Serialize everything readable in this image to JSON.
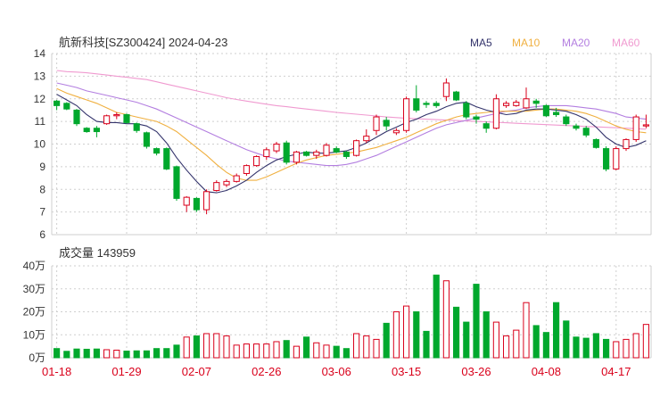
{
  "title": "航新科技[SZ300424] 2024-04-23",
  "colors": {
    "up": "#d9001b",
    "down": "#00a82d",
    "ma5": "#33336b",
    "ma10": "#f0b040",
    "ma20": "#b37ee0",
    "ma60": "#f09ad0",
    "grid": "#cfcfcf",
    "text": "#333333",
    "xtick": "#d9001b"
  },
  "legend": [
    {
      "label": "MA5",
      "color": "#33336b"
    },
    {
      "label": "MA10",
      "color": "#f0b040"
    },
    {
      "label": "MA20",
      "color": "#b37ee0"
    },
    {
      "label": "MA60",
      "color": "#f09ad0"
    }
  ],
  "volume_label": "成交量 143959",
  "chart_data": [
    {
      "type": "candlestick",
      "title": "航新科技[SZ300424] 2024-04-23",
      "ylim": [
        6,
        14
      ],
      "yticks": [
        6,
        7,
        8,
        9,
        10,
        11,
        12,
        13,
        14
      ],
      "xtick_labels": [
        {
          "index": 0,
          "label": "01-18"
        },
        {
          "index": 7,
          "label": "01-29"
        },
        {
          "index": 14,
          "label": "02-07"
        },
        {
          "index": 21,
          "label": "02-26"
        },
        {
          "index": 28,
          "label": "03-06"
        },
        {
          "index": 35,
          "label": "03-15"
        },
        {
          "index": 42,
          "label": "03-26"
        },
        {
          "index": 49,
          "label": "04-08"
        },
        {
          "index": 56,
          "label": "04-17"
        }
      ],
      "ohlc": [
        [
          11.9,
          11.95,
          11.5,
          11.7
        ],
        [
          11.8,
          11.85,
          11.5,
          11.55
        ],
        [
          11.5,
          11.55,
          10.8,
          10.9
        ],
        [
          10.7,
          10.75,
          10.5,
          10.55
        ],
        [
          10.7,
          10.8,
          10.3,
          10.55
        ],
        [
          10.9,
          11.3,
          10.85,
          11.25
        ],
        [
          11.25,
          11.4,
          11.1,
          11.3
        ],
        [
          11.3,
          11.35,
          10.9,
          10.95
        ],
        [
          10.9,
          10.95,
          10.5,
          10.6
        ],
        [
          10.5,
          10.55,
          9.8,
          9.9
        ],
        [
          9.8,
          9.85,
          9.5,
          9.6
        ],
        [
          9.8,
          9.85,
          8.85,
          8.9
        ],
        [
          9.0,
          9.05,
          7.5,
          7.6
        ],
        [
          7.3,
          7.7,
          7.0,
          7.65
        ],
        [
          7.6,
          7.65,
          7.0,
          7.1
        ],
        [
          7.1,
          8.0,
          6.9,
          7.9
        ],
        [
          7.95,
          8.4,
          7.9,
          8.3
        ],
        [
          8.2,
          8.45,
          8.1,
          8.35
        ],
        [
          8.35,
          8.7,
          8.3,
          8.6
        ],
        [
          8.7,
          9.1,
          8.6,
          9.05
        ],
        [
          9.05,
          9.5,
          9.0,
          9.45
        ],
        [
          9.45,
          9.85,
          9.3,
          9.75
        ],
        [
          9.7,
          10.1,
          9.6,
          10.0
        ],
        [
          10.05,
          10.15,
          9.1,
          9.2
        ],
        [
          9.2,
          9.7,
          9.1,
          9.65
        ],
        [
          9.65,
          9.7,
          9.45,
          9.5
        ],
        [
          9.5,
          9.75,
          9.35,
          9.65
        ],
        [
          9.5,
          10.05,
          9.45,
          9.95
        ],
        [
          9.8,
          9.9,
          9.6,
          9.65
        ],
        [
          9.65,
          9.7,
          9.35,
          9.45
        ],
        [
          9.5,
          10.2,
          9.45,
          10.15
        ],
        [
          10.15,
          10.65,
          10.05,
          10.35
        ],
        [
          10.6,
          11.3,
          10.4,
          11.2
        ],
        [
          11.05,
          11.2,
          10.6,
          10.8
        ],
        [
          10.5,
          10.7,
          10.4,
          10.6
        ],
        [
          10.6,
          12.1,
          10.5,
          12.0
        ],
        [
          12.0,
          12.6,
          11.4,
          11.5
        ],
        [
          11.8,
          11.9,
          11.6,
          11.75
        ],
        [
          11.8,
          11.9,
          11.6,
          11.7
        ],
        [
          12.1,
          12.9,
          11.9,
          12.7
        ],
        [
          12.3,
          12.35,
          11.9,
          11.95
        ],
        [
          11.8,
          11.9,
          11.1,
          11.2
        ],
        [
          11.2,
          11.3,
          10.9,
          11.1
        ],
        [
          10.9,
          11.0,
          10.5,
          10.7
        ],
        [
          10.7,
          12.2,
          10.65,
          12.0
        ],
        [
          11.7,
          11.9,
          11.6,
          11.8
        ],
        [
          11.7,
          11.95,
          11.65,
          11.85
        ],
        [
          11.6,
          12.5,
          11.55,
          12.0
        ],
        [
          11.9,
          12.0,
          11.6,
          11.8
        ],
        [
          11.7,
          11.75,
          11.2,
          11.25
        ],
        [
          11.4,
          11.6,
          11.2,
          11.3
        ],
        [
          11.2,
          11.3,
          10.8,
          10.9
        ],
        [
          10.8,
          10.9,
          10.6,
          10.7
        ],
        [
          10.7,
          10.8,
          10.3,
          10.4
        ],
        [
          10.2,
          10.25,
          9.8,
          9.85
        ],
        [
          9.8,
          9.9,
          8.8,
          8.9
        ],
        [
          8.9,
          9.9,
          8.85,
          9.8
        ],
        [
          9.8,
          10.25,
          9.7,
          10.2
        ],
        [
          10.2,
          11.3,
          10.1,
          11.2
        ],
        [
          10.8,
          11.3,
          10.7,
          10.85
        ]
      ],
      "ma5": [
        12.2,
        11.95,
        11.7,
        11.3,
        11.0,
        10.95,
        10.95,
        10.9,
        10.9,
        10.8,
        10.55,
        10.05,
        9.4,
        8.85,
        8.35,
        7.9,
        7.85,
        7.95,
        8.15,
        8.4,
        8.75,
        9.05,
        9.3,
        9.45,
        9.55,
        9.65,
        9.6,
        9.6,
        9.65,
        9.7,
        9.85,
        10.05,
        10.3,
        10.55,
        10.75,
        10.95,
        11.1,
        11.3,
        11.45,
        11.65,
        11.8,
        11.85,
        11.65,
        11.5,
        11.4,
        11.3,
        11.35,
        11.5,
        11.55,
        11.55,
        11.5,
        11.45,
        11.3,
        11.1,
        10.75,
        10.3,
        10.0,
        9.85,
        9.95,
        10.15
      ],
      "ma10": [
        12.45,
        12.25,
        12.1,
        11.95,
        11.8,
        11.6,
        11.4,
        11.3,
        11.2,
        11.1,
        11.0,
        10.8,
        10.55,
        10.2,
        9.85,
        9.5,
        9.1,
        8.75,
        8.5,
        8.4,
        8.4,
        8.55,
        8.75,
        8.95,
        9.15,
        9.3,
        9.4,
        9.5,
        9.55,
        9.6,
        9.65,
        9.75,
        9.85,
        10.0,
        10.15,
        10.3,
        10.5,
        10.7,
        10.9,
        11.05,
        11.2,
        11.3,
        11.35,
        11.4,
        11.45,
        11.45,
        11.45,
        11.45,
        11.5,
        11.55,
        11.55,
        11.5,
        11.45,
        11.35,
        11.2,
        11.0,
        10.8,
        10.65,
        10.55,
        10.5
      ],
      "ma20": [
        12.7,
        12.6,
        12.5,
        12.35,
        12.25,
        12.15,
        12.05,
        11.95,
        11.85,
        11.7,
        11.55,
        11.35,
        11.15,
        10.95,
        10.75,
        10.55,
        10.35,
        10.15,
        9.95,
        9.75,
        9.6,
        9.45,
        9.35,
        9.25,
        9.2,
        9.15,
        9.1,
        9.05,
        9.05,
        9.1,
        9.2,
        9.35,
        9.5,
        9.7,
        9.9,
        10.1,
        10.3,
        10.5,
        10.7,
        10.85,
        10.95,
        11.05,
        11.15,
        11.25,
        11.35,
        11.45,
        11.5,
        11.6,
        11.65,
        11.7,
        11.7,
        11.7,
        11.65,
        11.6,
        11.55,
        11.45,
        11.35,
        11.2,
        11.15,
        11.1
      ],
      "ma60": [
        13.25,
        13.2,
        13.18,
        13.15,
        13.1,
        13.05,
        13.0,
        12.95,
        12.9,
        12.85,
        12.75,
        12.65,
        12.55,
        12.45,
        12.35,
        12.25,
        12.15,
        12.05,
        11.97,
        11.9,
        11.83,
        11.76,
        11.7,
        11.65,
        11.6,
        11.55,
        11.5,
        11.45,
        11.4,
        11.36,
        11.32,
        11.28,
        11.24,
        11.2,
        11.17,
        11.14,
        11.12,
        11.1,
        11.08,
        11.06,
        11.04,
        11.02,
        11.0,
        10.98,
        10.96,
        10.94,
        10.92,
        10.9,
        10.88,
        10.86,
        10.84,
        10.82,
        10.8,
        10.78,
        10.76,
        10.74,
        10.72,
        10.7,
        10.68,
        10.66
      ]
    },
    {
      "type": "bar",
      "title": "成交量 143959",
      "ylim": [
        0,
        400000
      ],
      "ytick_labels": [
        {
          "value": 0,
          "label": "0万"
        },
        {
          "value": 100000,
          "label": "10万"
        },
        {
          "value": 200000,
          "label": "20万"
        },
        {
          "value": 300000,
          "label": "30万"
        },
        {
          "value": 400000,
          "label": "40万"
        }
      ],
      "values": [
        40000,
        28000,
        38000,
        37000,
        38000,
        35000,
        33000,
        29000,
        30000,
        30000,
        40000,
        40000,
        55000,
        90000,
        95000,
        105000,
        105000,
        95000,
        55000,
        60000,
        60000,
        60000,
        70000,
        75000,
        50000,
        90000,
        65000,
        55000,
        50000,
        40000,
        105000,
        95000,
        80000,
        150000,
        200000,
        225000,
        200000,
        115000,
        360000,
        335000,
        220000,
        155000,
        320000,
        200000,
        155000,
        95000,
        120000,
        240000,
        140000,
        110000,
        240000,
        160000,
        90000,
        85000,
        105000,
        80000,
        70000,
        80000,
        105000,
        145000
      ]
    }
  ]
}
